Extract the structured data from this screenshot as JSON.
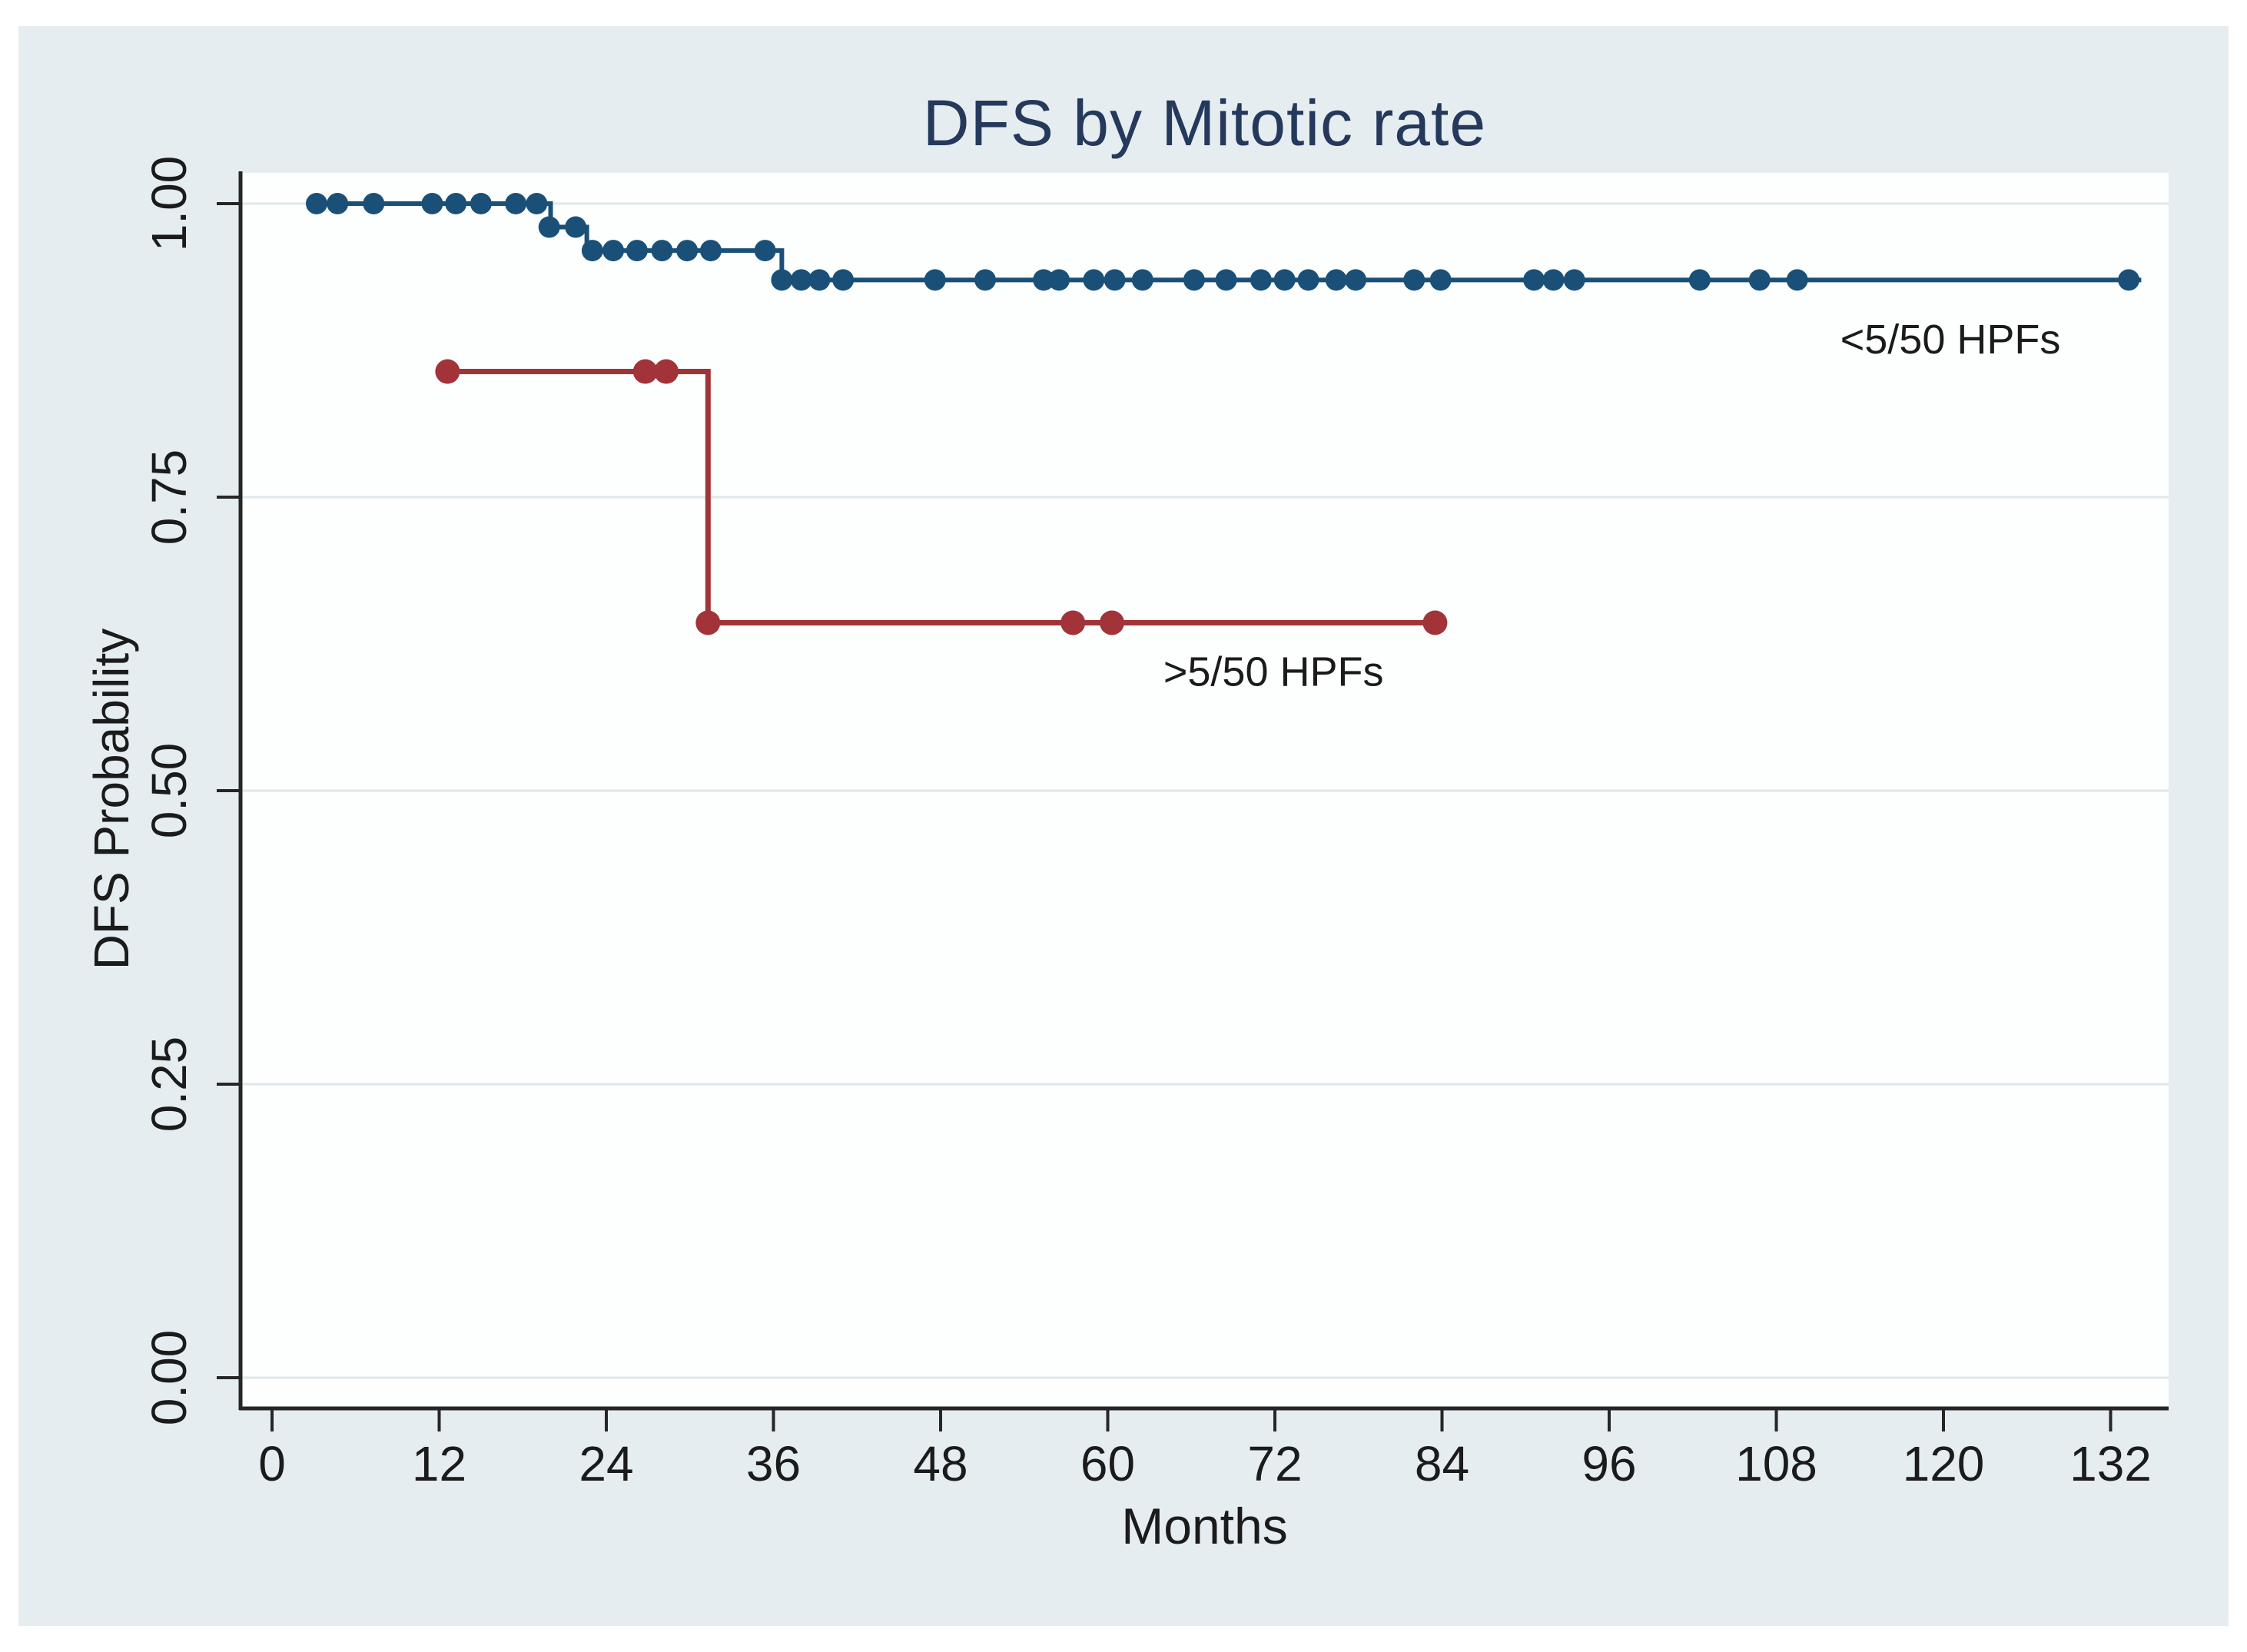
{
  "figure": {
    "background_color": "#e6edf0",
    "plot_background_color": "#fdfefe",
    "gridline_color": "#dfe8ec",
    "axis_color": "#262626",
    "text_color": "#1b1b1b",
    "title_color": "#24395b"
  },
  "chart_data": {
    "type": "line",
    "subtype": "kaplan-meier-step",
    "title": "DFS by Mitotic rate",
    "xlabel": "Months",
    "ylabel": "DFS Probability",
    "xlim": [
      0,
      137
    ],
    "ylim": [
      0,
      1.0
    ],
    "x_ticks": [
      0,
      12,
      24,
      36,
      48,
      60,
      72,
      84,
      96,
      108,
      120,
      132
    ],
    "y_ticks": [
      1.0,
      0.75,
      0.5,
      0.25,
      0.0
    ],
    "y_tick_labels": [
      "1.00",
      "0.75",
      "0.50",
      "0.25",
      "0.00"
    ],
    "grid": "horizontal",
    "legend_position": "inline-annotations",
    "series": [
      {
        "name": "<5/50 HPFs",
        "label": "<5/50 HPFs",
        "color": "#1a5078",
        "line_width": 6,
        "marker_radius": 14,
        "label_pos": [
          120.5,
          0.884
        ],
        "steps": [
          [
            3.2,
            1.0
          ],
          [
            20.0,
            1.0
          ],
          [
            20.0,
            0.98
          ],
          [
            22.6,
            0.98
          ],
          [
            22.6,
            0.96
          ],
          [
            36.6,
            0.96
          ],
          [
            36.6,
            0.935
          ],
          [
            134.2,
            0.935
          ]
        ],
        "censor_marks": [
          [
            3.2,
            1.0
          ],
          [
            4.7,
            1.0
          ],
          [
            7.3,
            1.0
          ],
          [
            11.5,
            1.0
          ],
          [
            13.2,
            1.0
          ],
          [
            15.0,
            1.0
          ],
          [
            17.5,
            1.0
          ],
          [
            19.0,
            1.0
          ],
          [
            19.9,
            0.98
          ],
          [
            21.8,
            0.98
          ],
          [
            23.0,
            0.96
          ],
          [
            24.5,
            0.96
          ],
          [
            26.2,
            0.96
          ],
          [
            28.0,
            0.96
          ],
          [
            29.8,
            0.96
          ],
          [
            31.5,
            0.96
          ],
          [
            35.4,
            0.96
          ],
          [
            36.6,
            0.935
          ],
          [
            38.0,
            0.935
          ],
          [
            39.3,
            0.935
          ],
          [
            41.0,
            0.935
          ],
          [
            47.6,
            0.935
          ],
          [
            51.2,
            0.935
          ],
          [
            55.4,
            0.935
          ],
          [
            56.5,
            0.935
          ],
          [
            59.0,
            0.935
          ],
          [
            60.5,
            0.935
          ],
          [
            62.5,
            0.935
          ],
          [
            66.2,
            0.935
          ],
          [
            68.5,
            0.935
          ],
          [
            71.0,
            0.935
          ],
          [
            72.7,
            0.935
          ],
          [
            74.4,
            0.935
          ],
          [
            76.4,
            0.935
          ],
          [
            77.8,
            0.935
          ],
          [
            82.0,
            0.935
          ],
          [
            83.9,
            0.935
          ],
          [
            90.6,
            0.935
          ],
          [
            92.0,
            0.935
          ],
          [
            93.5,
            0.935
          ],
          [
            102.5,
            0.935
          ],
          [
            106.8,
            0.935
          ],
          [
            109.5,
            0.935
          ],
          [
            133.3,
            0.935
          ]
        ]
      },
      {
        "name": ">5/50 HPFs",
        "label": ">5/50 HPFs",
        "color": "#a23339",
        "line_width": 7,
        "marker_radius": 16,
        "label_pos": [
          71.9,
          0.601
        ],
        "steps": [
          [
            12.6,
            0.857
          ],
          [
            31.3,
            0.857
          ],
          [
            31.3,
            0.643
          ],
          [
            84.3,
            0.643
          ]
        ],
        "censor_marks": [
          [
            12.6,
            0.857
          ],
          [
            26.8,
            0.857
          ],
          [
            28.3,
            0.857
          ],
          [
            31.3,
            0.643
          ],
          [
            57.5,
            0.643
          ],
          [
            60.3,
            0.643
          ],
          [
            83.5,
            0.643
          ]
        ]
      }
    ]
  }
}
